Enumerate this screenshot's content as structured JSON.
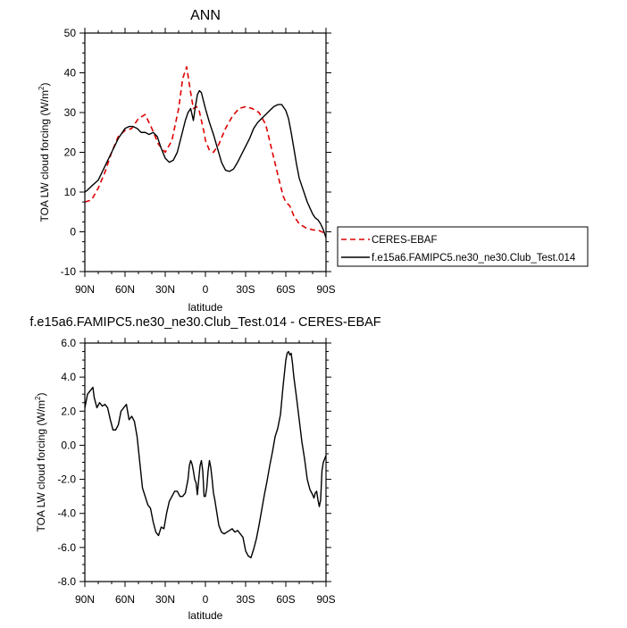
{
  "chart_data": [
    {
      "type": "line",
      "title": "ANN",
      "xlabel": "latitude",
      "ylabel_prefix": "TOA LW cloud forcing (W/m",
      "ylabel_sup": "2",
      "ylabel_suffix": ")",
      "xlim": [
        90,
        -90
      ],
      "ylim": [
        -10,
        50
      ],
      "yticks": [
        -10,
        0,
        10,
        20,
        30,
        40,
        50
      ],
      "ytick_labels": [
        "-10",
        "0",
        "10",
        "20",
        "30",
        "40",
        "50"
      ],
      "xticks": [
        90,
        60,
        30,
        0,
        -30,
        -60,
        -90
      ],
      "xtick_labels": [
        "90N",
        "60N",
        "30N",
        "0",
        "30S",
        "60S",
        "90S"
      ],
      "legend_position": "right",
      "series": [
        {
          "name": "CERES-EBAF",
          "color": "#e00000",
          "dash": "dashed",
          "x": [
            90,
            85,
            80,
            75,
            70,
            65,
            60,
            55,
            50,
            45,
            40,
            35,
            30,
            25,
            20,
            17,
            14,
            11,
            9,
            7,
            5,
            3,
            1,
            0,
            -3,
            -6,
            -10,
            -15,
            -20,
            -25,
            -30,
            -35,
            -40,
            -45,
            -50,
            -55,
            -58,
            -60,
            -63,
            -66,
            -70,
            -75,
            -80,
            -85,
            -90
          ],
          "y": [
            7.5,
            8,
            11,
            15,
            20,
            24,
            25.5,
            26,
            28.5,
            29.5,
            26,
            22,
            20,
            23,
            31,
            38.5,
            41.5,
            35,
            31,
            31.5,
            31,
            28,
            25,
            23,
            20.5,
            20,
            22,
            26,
            29,
            31,
            31.5,
            31,
            30,
            27,
            20,
            13,
            9,
            7.5,
            6.5,
            4,
            2,
            1,
            0.5,
            0.3,
            -0.5
          ]
        },
        {
          "name": "f.e15a6.FAMIPC5.ne30_ne30.Club_Test.014",
          "color": "#000000",
          "dash": "solid",
          "x": [
            90,
            88,
            85,
            80,
            75,
            70,
            65,
            60,
            57,
            54,
            51,
            48,
            45,
            42,
            39,
            36,
            33,
            30,
            27,
            24,
            21,
            18,
            15,
            13,
            11,
            9,
            7.5,
            6,
            4.5,
            3,
            1.5,
            0,
            -3,
            -6,
            -9,
            -12,
            -15,
            -18,
            -21,
            -24,
            -27,
            -30,
            -33,
            -36,
            -39,
            -42,
            -45,
            -48,
            -51,
            -54,
            -57,
            -60,
            -62,
            -64,
            -66,
            -68,
            -70,
            -72,
            -74,
            -76,
            -78,
            -80,
            -82,
            -84,
            -86,
            -88,
            -90
          ],
          "y": [
            10,
            10.5,
            11.5,
            13,
            16.5,
            20,
            23.5,
            26,
            26.5,
            26.5,
            26,
            25,
            25,
            24.5,
            25,
            24,
            21,
            18.5,
            17.5,
            18,
            20,
            24,
            28,
            30,
            31,
            28,
            31.5,
            34.5,
            35.5,
            35,
            33,
            31,
            27.5,
            24.5,
            21,
            17.5,
            15.5,
            15.2,
            15.8,
            17.5,
            19.5,
            21.5,
            23.5,
            26,
            27.5,
            28.5,
            29.5,
            30.5,
            31.5,
            32,
            32,
            30.5,
            28.5,
            25,
            21,
            17,
            13.5,
            11.5,
            9.5,
            7.5,
            6,
            4.5,
            3.5,
            3,
            2,
            0.5,
            -1.5
          ]
        }
      ]
    },
    {
      "type": "line",
      "title": "f.e15a6.FAMIPC5.ne30_ne30.Club_Test.014 - CERES-EBAF",
      "xlabel": "latitude",
      "ylabel_prefix": "TOA LW cloud forcing (W/m",
      "ylabel_sup": "2",
      "ylabel_suffix": ")",
      "xlim": [
        90,
        -90
      ],
      "ylim": [
        -8,
        6
      ],
      "yticks": [
        -8,
        -6,
        -4,
        -2,
        0,
        2,
        4,
        6
      ],
      "ytick_labels": [
        "-8.0",
        "-6.0",
        "-4.0",
        "-2.0",
        "0.0",
        "2.0",
        "4.0",
        "6.0"
      ],
      "xticks": [
        90,
        60,
        30,
        0,
        -30,
        -60,
        -90
      ],
      "xtick_labels": [
        "90N",
        "60N",
        "30N",
        "0",
        "30S",
        "60S",
        "90S"
      ],
      "series": [
        {
          "color": "#000000",
          "dash": "solid",
          "x": [
            90,
            88,
            86,
            84,
            83,
            81,
            79,
            77,
            75,
            73,
            71,
            69,
            67,
            65,
            63,
            61,
            59,
            57,
            55,
            53,
            51,
            49,
            47,
            45,
            43,
            41,
            39,
            37,
            35,
            33,
            31,
            29,
            27,
            25,
            23,
            21,
            19,
            17,
            15,
            13,
            12,
            11,
            10,
            9,
            8,
            7,
            6,
            5,
            4,
            3,
            2,
            1,
            0,
            -1,
            -2,
            -3,
            -4,
            -5,
            -6,
            -7,
            -8,
            -10,
            -12,
            -14,
            -16,
            -18,
            -20,
            -22,
            -24,
            -26,
            -28,
            -30,
            -32,
            -34,
            -36,
            -38,
            -40,
            -42,
            -44,
            -46,
            -48,
            -50,
            -52,
            -54,
            -56,
            -58,
            -60,
            -61,
            -62,
            -63,
            -64,
            -65,
            -66,
            -68,
            -70,
            -72,
            -74,
            -76,
            -78,
            -80,
            -81,
            -82,
            -83,
            -84,
            -85,
            -86,
            -87,
            -88,
            -90
          ],
          "y": [
            2.2,
            3.0,
            3.2,
            3.4,
            2.8,
            2.2,
            2.5,
            2.3,
            2.4,
            2.2,
            1.5,
            0.9,
            0.9,
            1.2,
            2.0,
            2.2,
            2.4,
            1.5,
            1.7,
            1.4,
            0.5,
            -1.0,
            -2.5,
            -3.0,
            -3.5,
            -3.7,
            -4.5,
            -5.1,
            -5.3,
            -4.8,
            -4.9,
            -4.0,
            -3.3,
            -3.0,
            -2.7,
            -2.7,
            -3.0,
            -3.0,
            -2.8,
            -2.0,
            -1.2,
            -0.9,
            -1.1,
            -1.5,
            -2.0,
            -2.2,
            -2.9,
            -2.0,
            -1.2,
            -0.9,
            -1.5,
            -3.0,
            -3.0,
            -2.5,
            -1.5,
            -0.9,
            -1.3,
            -2.0,
            -2.8,
            -3.2,
            -3.7,
            -4.7,
            -5.1,
            -5.2,
            -5.1,
            -5.0,
            -4.9,
            -5.1,
            -5.0,
            -5.2,
            -5.4,
            -6.2,
            -6.5,
            -6.6,
            -6.1,
            -5.5,
            -4.7,
            -3.8,
            -2.9,
            -2.1,
            -1.2,
            -0.4,
            0.5,
            1.0,
            1.8,
            3.5,
            5.0,
            5.4,
            5.5,
            5.3,
            5.4,
            4.8,
            4.0,
            2.8,
            1.5,
            0.2,
            -0.8,
            -2.0,
            -2.6,
            -2.9,
            -3.1,
            -2.8,
            -2.7,
            -3.2,
            -3.6,
            -3.2,
            -1.5,
            -1.0,
            -0.6
          ]
        }
      ]
    }
  ]
}
